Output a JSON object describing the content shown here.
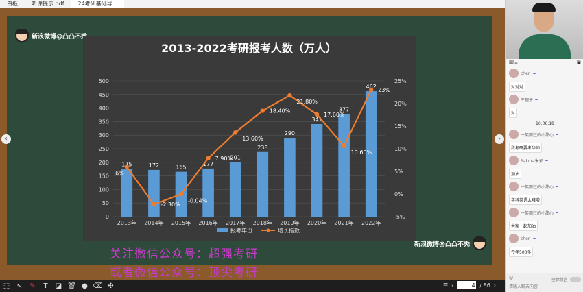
{
  "tabs": [
    "白板",
    "听课提示.pdf",
    "24考研基础导..."
  ],
  "logo_text": "新浪微博@凸凸不秃",
  "chart_data": {
    "type": "bar",
    "title": "2013-2022考研报考人数（万人）",
    "categories": [
      "2013年",
      "2014年",
      "2015年",
      "2016年",
      "2017年",
      "2018年",
      "2019年",
      "2020年",
      "2021年",
      "2022年"
    ],
    "series": [
      {
        "name": "报考年份",
        "type": "bar",
        "axis": "left",
        "values": [
          175,
          172,
          165,
          177,
          201,
          238,
          290,
          341,
          377,
          462
        ]
      },
      {
        "name": "增长指数",
        "type": "line",
        "axis": "right",
        "values": [
          6,
          -2.3,
          -0.04,
          7.9,
          13.6,
          18.4,
          21.8,
          17.6,
          10.6,
          23
        ]
      }
    ],
    "bar_labels": [
      "175",
      "172",
      "165",
      "177",
      "201",
      "238",
      "290",
      "341",
      "377",
      "462"
    ],
    "line_labels": [
      "6%",
      "-2.30%",
      "-0.04%",
      "7.90%",
      "13.60%",
      "18.40%",
      "21.80%",
      "17.60%",
      "10.60%",
      "23%"
    ],
    "ylim_left": [
      0,
      500
    ],
    "yticks_left": [
      "0",
      "50",
      "100",
      "150",
      "200",
      "250",
      "300",
      "350",
      "400",
      "450",
      "500"
    ],
    "ylim_right": [
      -5,
      25
    ],
    "yticks_right": [
      "-5%",
      "0%",
      "5%",
      "10%",
      "15%",
      "20%",
      "25%"
    ],
    "legend_position": "bottom",
    "grid": true,
    "colors": {
      "bar": "#5b9bd5",
      "line": "#ed7d31",
      "background": "#3a3a3a"
    }
  },
  "watermark": {
    "line1": "关注微信公众号：超强考研",
    "line2": "或者微信公众号：顶尖考研"
  },
  "pager": {
    "current": "4",
    "total": "/ 86"
  },
  "chat": {
    "title": "聊天",
    "messages": [
      {
        "user": "chen",
        "text": "对对对"
      },
      {
        "user": "王狸子",
        "text": "对"
      },
      {
        "time": "16:06:18"
      },
      {
        "user": "一笑而过的小甜心",
        "text": "我考研要考华师"
      },
      {
        "user": "Sakura米呆",
        "text": "加油"
      },
      {
        "user": "一笑而过的小甜心",
        "text": "学科英语太难啦"
      },
      {
        "user": "一笑而过的小甜心",
        "text": "大家一起加油"
      },
      {
        "user": "chen",
        "text": "今年500多"
      }
    ],
    "mute_label": "全体禁言",
    "input_placeholder": "请输入聊天内容"
  }
}
